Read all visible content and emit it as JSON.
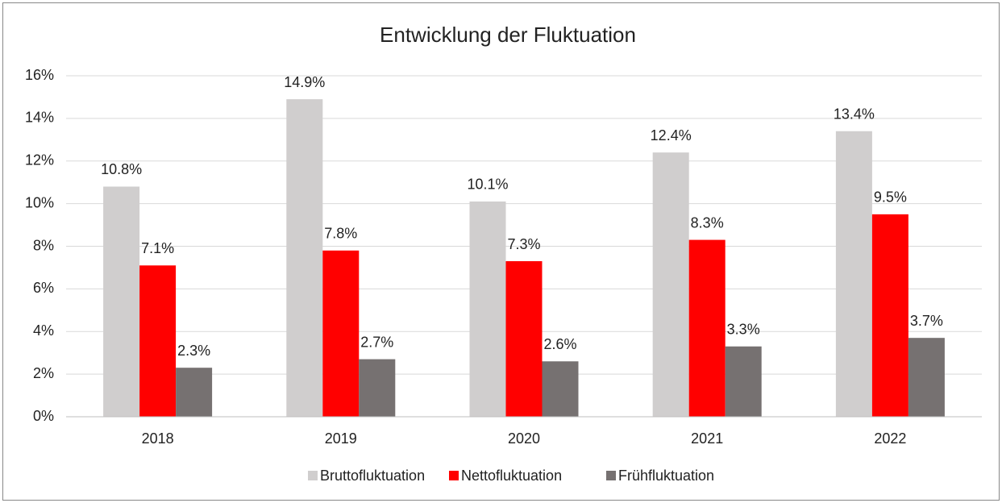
{
  "chart_data": {
    "type": "bar",
    "title": "Entwicklung der Fluktuation",
    "categories": [
      "2018",
      "2019",
      "2020",
      "2021",
      "2022"
    ],
    "series": [
      {
        "name": "Bruttofluktuation",
        "color": "#d0cece",
        "values": [
          10.8,
          14.9,
          10.1,
          12.4,
          13.4
        ],
        "value_labels": [
          "10.8%",
          "14.9%",
          "10.1%",
          "12.4%",
          "13.4%"
        ]
      },
      {
        "name": "Nettofluktuation",
        "color": "#ff0000",
        "values": [
          7.1,
          7.8,
          7.3,
          8.3,
          9.5
        ],
        "value_labels": [
          "7.1%",
          "7.8%",
          "7.3%",
          "8.3%",
          "9.5%"
        ]
      },
      {
        "name": "Frühfluktuation",
        "color": "#767171",
        "values": [
          2.3,
          2.7,
          2.6,
          3.3,
          3.7
        ],
        "value_labels": [
          "2.3%",
          "2.7%",
          "2.6%",
          "3.3%",
          "3.7%"
        ]
      }
    ],
    "ylim": [
      0,
      16
    ],
    "yticks": [
      {
        "value": 0,
        "label": "0%"
      },
      {
        "value": 2,
        "label": "2%"
      },
      {
        "value": 4,
        "label": "4%"
      },
      {
        "value": 6,
        "label": "6%"
      },
      {
        "value": 8,
        "label": "8%"
      },
      {
        "value": 10,
        "label": "10%"
      },
      {
        "value": 12,
        "label": "12%"
      },
      {
        "value": 14,
        "label": "14%"
      },
      {
        "value": 16,
        "label": "16%"
      }
    ],
    "grid": true,
    "legend": "bottom"
  }
}
